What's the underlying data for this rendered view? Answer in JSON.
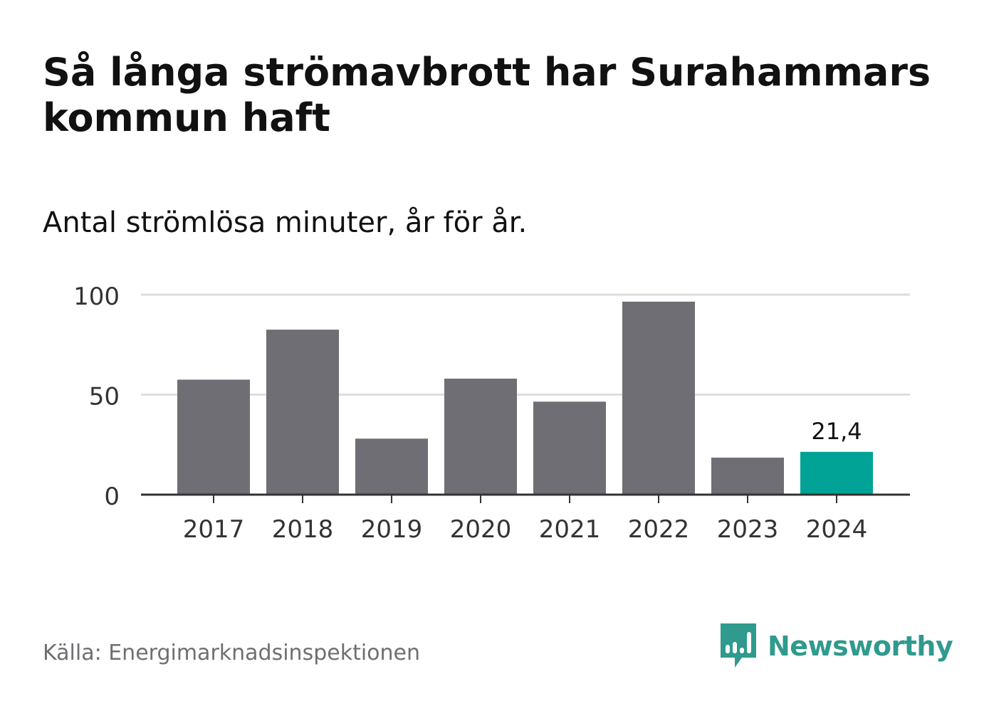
{
  "title": "Så långa strömavbrott har Surahammars kommun haft",
  "subtitle": "Antal strömlösa minuter, år för år.",
  "source": "Källa: Energimarknadsinspektionen",
  "brand": {
    "name": "Newsworthy",
    "icon": "newsworthy-logo-icon",
    "color": "#2f9a8d"
  },
  "colors": {
    "bar": "#6f6e74",
    "highlight": "#00a396",
    "grid": "#dddddd",
    "axis": "#333333"
  },
  "chart_data": {
    "type": "bar",
    "categories": [
      "2017",
      "2018",
      "2019",
      "2020",
      "2021",
      "2022",
      "2023",
      "2024"
    ],
    "values": [
      57.5,
      82.5,
      28,
      58,
      46.5,
      96.5,
      18.5,
      21.4
    ],
    "ylim": [
      0,
      100
    ],
    "yticks": [
      "0",
      "50",
      "100"
    ],
    "highlight_index": 7,
    "data_labels": [
      {
        "index": 7,
        "text": "21,4"
      }
    ],
    "grid": true,
    "xlabel": "",
    "ylabel": ""
  }
}
